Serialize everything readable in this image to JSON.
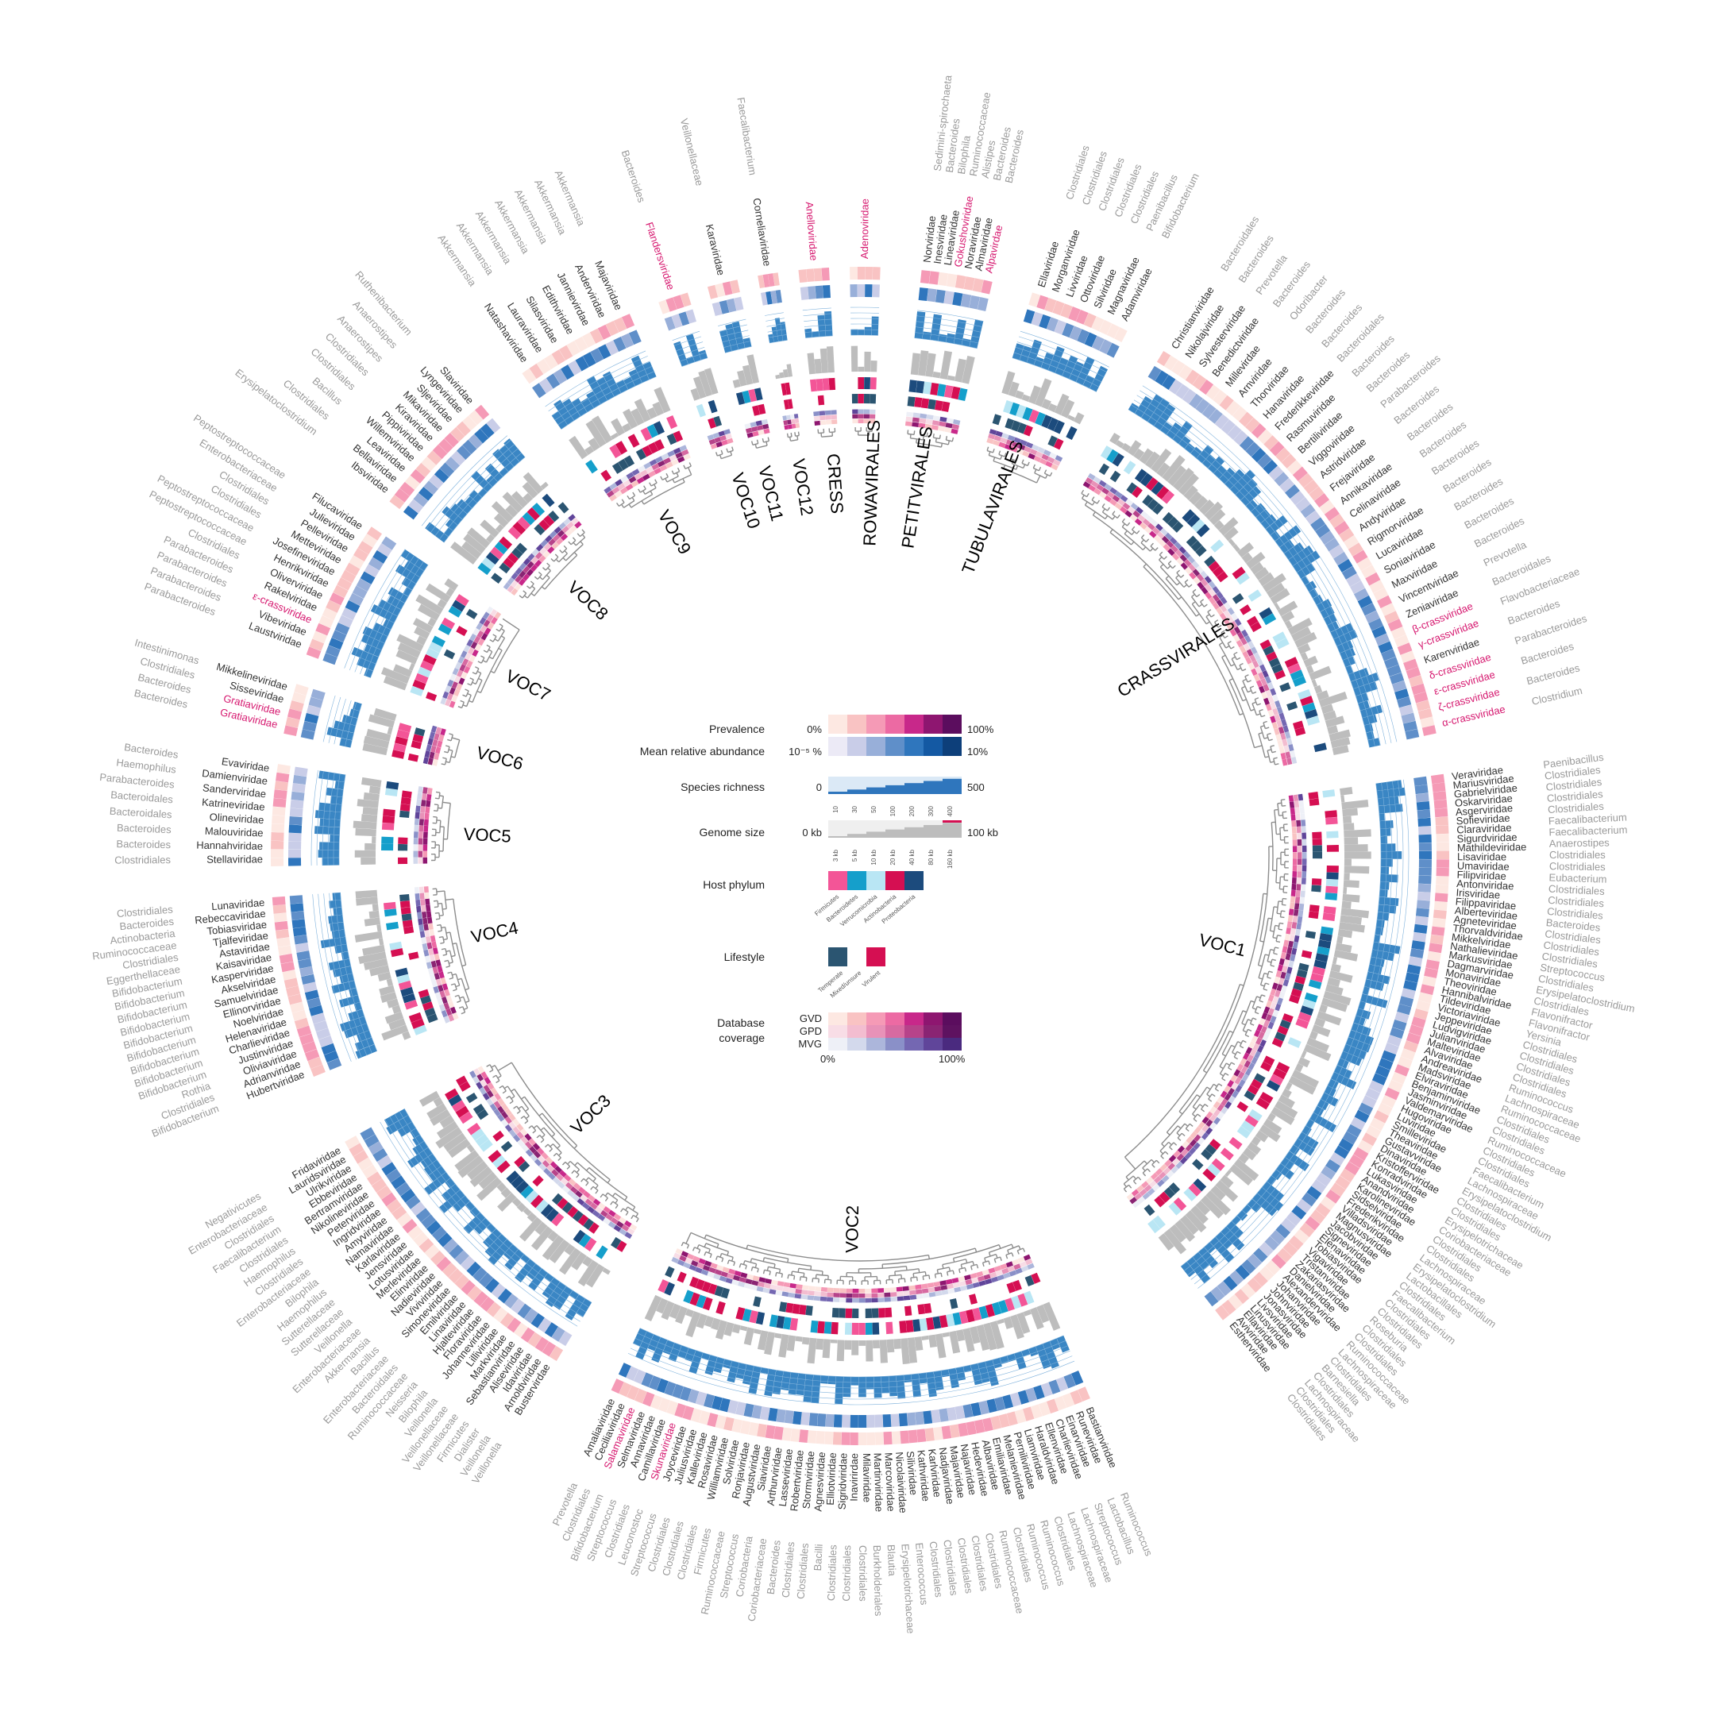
{
  "palette": {
    "prevalence": [
      "#fde8e2",
      "#f9c3c3",
      "#f59ab6",
      "#ec6aa3",
      "#c8288a",
      "#8e1670",
      "#5b0d5e"
    ],
    "abundance": [
      "#eceaf6",
      "#c9cde8",
      "#98afd9",
      "#5f8fc9",
      "#2f76bd",
      "#1459a3",
      "#0d3f7a"
    ],
    "host": [
      "#f35597",
      "#159fcb",
      "#b9e6f4",
      "#d50f52",
      "#1c4b7d"
    ],
    "lifestyle": [
      "#2b5571",
      "#d50f52"
    ],
    "coverage_gvd": [
      "#fde8e2",
      "#f9c3c3",
      "#f59ab6",
      "#ec6aa3",
      "#c8288a",
      "#8e1670",
      "#5b0d5e"
    ],
    "coverage_gpd": [
      "#f8dde6",
      "#f3bdd0",
      "#e892b8",
      "#d76aa1",
      "#b7438a",
      "#8a2473",
      "#5e1260"
    ],
    "coverage_mvg": [
      "#eef0f7",
      "#d3d9ec",
      "#acb6db",
      "#8a90c8",
      "#7467b2",
      "#60459a",
      "#4a2a7f"
    ],
    "genome": "#bdbdbd",
    "tree": "#8c8c8c",
    "pink_text": "#d6186f"
  },
  "legend": {
    "prevalence": {
      "label": "Prevalence",
      "min": "0%",
      "max": "100%"
    },
    "abundance": {
      "label": "Mean relative abundance",
      "min": "10⁻⁵ %",
      "max": "10%"
    },
    "richness": {
      "label": "Species richness",
      "min": "0",
      "max": "500",
      "ticks": [
        "10",
        "30",
        "50",
        "100",
        "200",
        "300",
        "400"
      ]
    },
    "genome": {
      "label": "Genome size",
      "min": "0 kb",
      "max": "100 kb",
      "ticks": [
        "3 kb",
        "5 kb",
        "10 kb",
        "20 kb",
        "40 kb",
        "80 kb",
        "160 kb"
      ]
    },
    "host": {
      "label": "Host phylum",
      "items": [
        "Firmicutes",
        "Bacteroidetes",
        "Verrucomicrobia",
        "Actinobacteria",
        "Proteobacteria"
      ]
    },
    "lifestyle": {
      "label": "Lifestyle",
      "items": [
        "Temperate",
        "Mixed/unsure",
        "Virulent"
      ]
    },
    "coverage": {
      "label1": "Database",
      "label2": "coverage",
      "rows": [
        "GVD",
        "GPD",
        "MVG"
      ],
      "min": "0%",
      "max": "100%"
    }
  },
  "clades": [
    {
      "name": "CRASSVIRALES",
      "lead_families": [
        "Christianviridae",
        "Nikolajviridae",
        "Sylvesterviridae",
        "Benedictviridae",
        "Millevirdae",
        "Arnviridae",
        "Thorviridae",
        "Hanaviridae",
        "Frederikkeviridae",
        "Rasmuviridae",
        "Bertiliviridae",
        "Viggoviridae",
        "Astridviridae",
        "Frejaviridae",
        "Annikaviridae",
        "Celinaviridae",
        "Andyviridae",
        "Rigmorviridae",
        "Lucaviridae",
        "Soniaviridae",
        "Maxviridae",
        "Vincentviridae",
        "Zeniaviridae",
        "β-crassviridae",
        "γ-crassviridae",
        "Karenviridae",
        "δ-crassviridae",
        "ε-crassviridae",
        "ζ-crassviridae",
        "α-crassviridae"
      ],
      "hosts": [
        "Bacteroidales",
        "Bacteroides",
        "Prevotella",
        "Bacteroides",
        "Odoribacter",
        "Bacteroides",
        "Bacteroides",
        "Bacteroidales",
        "Bacteroides",
        "Bacteroides",
        "Parabacteroides",
        "Bacteroides",
        "Bacteroides",
        "Bacteroides",
        "Bacteroides",
        "Bacteroides",
        "Bacteroides",
        "Bacteroides",
        "Bacteroides",
        "Prevotella",
        "Bacteroidales",
        "Flavobacteriaceae",
        "Bacteroides",
        "Parabacteroides",
        "Bacteroides",
        "Bacteroides",
        "Clostridium"
      ]
    },
    {
      "name": "VOC1",
      "lead_families": [
        "Veraviridae",
        "Mariusviridae",
        "Gabrielviridae",
        "Oskarviridae",
        "Asgerviridae",
        "Sofieviridae",
        "Claraviridae",
        "Sigurdviridae",
        "Mathildeviridae",
        "Lisaviridae",
        "Umaviridae",
        "Filipviridae",
        "Antonviridae",
        "Irisviridae",
        "Filippaviridae",
        "Alberteviridae",
        "Agneteviridae",
        "Thorvaldviridae",
        "Mikkelviridae",
        "Nathalieviridae",
        "Markusviridae",
        "Dagmarviridae",
        "Monaviridae",
        "Theoviridae",
        "Hannibalviridae",
        "Tildeviridae",
        "Victoriaviridae",
        "Jeppeviridae",
        "Ludvigviridae",
        "Julianviridae",
        "Malteviridae",
        "Alvaviridae",
        "Andreaviridae",
        "Madsviridae",
        "Elviraviridae",
        "Benjaminviridae",
        "Jasminviridae",
        "Valdemarviridae",
        "Hugoviridae",
        "Luviridae",
        "Smilleviridae",
        "Theaviridae",
        "Gustavviridae",
        "Dinaviridae",
        "Kristofferviridae",
        "Konradviridae",
        "Lukasviridae",
        "Anandviridae",
        "Karolineviridae",
        "Sidselviridae",
        "Frederikviridae",
        "Villadsviridae",
        "Magnusviridae",
        "Jacobviridae",
        "Signeviridae",
        "Elenaviridae",
        "Tobiasviridae",
        "Vigaviridae",
        "Tristanviridae",
        "Zakariasviridae",
        "Danielviridae",
        "Alexanderviridae",
        "Johanviridae",
        "Johnviridae",
        "Jonasviridae",
        "Livsviridae",
        "Linusviridae",
        "Ellaviridae",
        "Aviviridae",
        "Estherviridae"
      ],
      "hosts": [
        "Paenibacillus",
        "Clostridiales",
        "Clostridiales",
        "Clostridiales",
        "Clostridiales",
        "Faecalibacterium",
        "Faecalibacterium",
        "Anaerostipes",
        "Clostridiales",
        "Clostridiales",
        "Eubacterium",
        "Clostridiales",
        "Clostridiales",
        "Clostridiales",
        "Bacteroides",
        "Clostridiales",
        "Clostridiales",
        "Clostridiales",
        "Streptococcus",
        "Clostridiales",
        "Erysipelatoclostridium",
        "Clostridiales",
        "Flavonifractor",
        "Flavonifractor",
        "Yersinia",
        "Clostridiales",
        "Clostridiales",
        "Clostridiales",
        "Clostridiales",
        "Ruminococcus",
        "Lachnospiraceae",
        "Ruminococcaceae",
        "Clostridiales",
        "Clostridiales",
        "Ruminococcaceae",
        "Clostridiales",
        "Clostridiales",
        "Faecalibacterium",
        "Lachnospiraceae",
        "Erysipelatoclostridium",
        "Clostridiales",
        "Clostridiales",
        "Erysipelotrichaceae",
        "Coriobacteriaceae",
        "Clostridiales",
        "Clostridiales",
        "Lachnospiraceae",
        "Erysipelatoclostridium",
        "Lactobacillales",
        "Clostridiales",
        "Faecalibacterium",
        "Clostridiales",
        "Clostridiales",
        "Roseburia",
        "Clostridiales",
        "Clostridiales",
        "Ruminococcaceae",
        "Lachnospiraceae",
        "Clostridiales",
        "Barnesiella",
        "Clostridiales",
        "Lachnospiraceae",
        "Clostridiales",
        "Clostridiales"
      ]
    },
    {
      "name": "VOC2",
      "lead_families": [
        "Bastianviridae",
        "Runeviridae",
        "Einarviridae",
        "Charlieviridae",
        "Ellenviridae",
        "Haraldviridae",
        "Liamviridae",
        "Perniliviridae",
        "Melanieviridae",
        "Emiliaviridae",
        "Albaviridae",
        "Hedeviridae",
        "Najaviridae",
        "Majaviridae",
        "Nadjaviridae",
        "Karlviridae",
        "Kathviridae",
        "Siliviridae",
        "Nicolaiviridae",
        "Marcoviridae",
        "Martinviridae",
        "Milaviridae",
        "Inavirirdae",
        "Sigridviridae",
        "Elliotviridae",
        "Agnesviridae",
        "Stormviridae",
        "Robertviridae",
        "Lasseviridae",
        "Arthurviridae",
        "Siaviridae",
        "Augustviridae",
        "Ronjaviridae",
        "Solviridae",
        "Williamviridae",
        "Rosaviridae",
        "Kalleviridae",
        "Juliusviridae",
        "Joyceviridae",
        "Skunaviridae",
        "Camillaviridae",
        "Annaviridae",
        "Selmaviridae",
        "Salamaviridae",
        "Ceciliaviridae",
        "Amaliaviridae"
      ],
      "hosts": [
        "Ruminococcus",
        "Lactobacillus",
        "Streptococcus",
        "Lachnospiraceae",
        "Lachnospiraceae",
        "Clostridiales",
        "Ruminococcus",
        "Ruminococcus",
        "Clostridiales",
        "Ruminococcaceae",
        "Clostridiales",
        "Clostridiales",
        "Clostridiales",
        "Clostridiales",
        "Clostridiales",
        "Enterococcus",
        "Erysipelotrichaceae",
        "Blautia",
        "Burkholderiales",
        "Clostridiales",
        "Clostridiales",
        "Clostridiales",
        "Bacilli",
        "Clostridiales",
        "Clostridiales",
        "Bacteroides",
        "Coriobacteriaceae",
        "Coriobacteria",
        "Streptococcus",
        "Ruminococcaceae",
        "Firmicutes",
        "Clostridiales",
        "Clostridiales",
        "Clostridiales",
        "Streptococcus",
        "Leuconostoc",
        "Clostridiales",
        "Streptococcus",
        "Bifidobacterium",
        "Clostridiales",
        "Prevotella"
      ]
    },
    {
      "name": "VOC3",
      "lead_families": [
        "Bustervirdae",
        "Arnoldviridae",
        "Idaviridae",
        "Aliseviridae",
        "Sebastianviridae",
        "Markviridae",
        "Lilliviridae",
        "Johanneviridae",
        "Floraviridae",
        "Hjalteviridae",
        "Linaviridae",
        "Emilviridae",
        "Simoneviridae",
        "Viviviridae",
        "Nadieviridae",
        "Elinviridae",
        "Merleviridae",
        "Lotusviridae",
        "Jensviridae",
        "Karlaviridae",
        "Namaviridae",
        "Amyviridae",
        "Ingridviridae",
        "Peterviridae",
        "Nikolineviridae",
        "Bertramviridae",
        "Ebbeviridae",
        "Ulrikviridae",
        "Lauridsviridae",
        "Fridaviridae"
      ],
      "hosts": [
        "Veillonella",
        "Veillonella",
        "Dialister",
        "Firmicutes",
        "Veillonellaceae",
        "Veillonellaceae",
        "Veillonella",
        "Bilophila",
        "Neisseria",
        "Ruminococcaceae",
        "Bacteroidales",
        "Enterobacteriaceae",
        "Bacillus",
        "Akkermansia",
        "Enterobacteriaceae",
        "Veillonella",
        "Sutterellaceae",
        "Sutterellaceae",
        "Haemophilus",
        "Bilophila",
        "Enterobacteriaceae",
        "Clostridiales",
        "Haemophilus",
        "Clostridiales",
        "Faecalibacterium",
        "Clostridiales",
        "Enterobacteriaceae",
        "Negativicutes"
      ]
    },
    {
      "name": "VOC4",
      "lead_families": [
        "Hubertviridae",
        "Adrianviridae",
        "Oliviaviridae",
        "Justinviridae",
        "Charlieviridae",
        "Helenaviridae",
        "Noelviridae",
        "Ellinorviridae",
        "Samuelviridae",
        "Akselviridae",
        "Kasperviridae",
        "Kaisaviridae",
        "Astaviridae",
        "Tjalfeviridae",
        "Tobiasviridae",
        "Rebeccaviridae",
        "Lunaviridae"
      ],
      "hosts": [
        "Bifidobacterium",
        "Clostridiales",
        "Rothia",
        "Bifidobacterium",
        "Bifidobacterium",
        "Bifidobacterium",
        "Bifidobacterium",
        "Bifidobacterium",
        "Bifidobacterium",
        "Bifidobacterium",
        "Bifidobacterium",
        "Bifidobacterium",
        "Eggerthellaceae",
        "Clostridiales",
        "Ruminococcaceae",
        "Actinobacteria",
        "Bacteroides",
        "Clostridiales"
      ]
    },
    {
      "name": "VOC5",
      "lead_families": [
        "Stellaviridae",
        "Hannahviridae",
        "Malouviridae",
        "Olineviridae",
        "Katrineviridae",
        "Sanderviridae",
        "Damienviridae",
        "Evaviridae"
      ],
      "hosts": [
        "Clostridiales",
        "Bacteroides",
        "Bacteroides",
        "Bacteroidales",
        "Bacteroidales",
        "Parabacteroides",
        "Haemophilus",
        "Bacteroides"
      ]
    },
    {
      "name": "VOC6",
      "lead_families": [
        "Gratiaviridae",
        "Gratiaviridae",
        "Sisseviridae",
        "Mikkelineviridae"
      ],
      "hosts": [
        "Bacteroides",
        "Bacteroides",
        "Clostridiales",
        "Intestinimonas"
      ]
    },
    {
      "name": "VOC7",
      "lead_families": [
        "Laustviridae",
        "Vibeviridae",
        "ε-crassviridae",
        "Rakelviridae",
        "Oliverviridae",
        "Henrikviridae",
        "Josefineviridae",
        "Metteviridae",
        "Pelleviridae",
        "Julieviridae",
        "Filucaviridae"
      ],
      "hosts": [
        "Parabacteroides",
        "Parabacteroides",
        "Parabacteroides",
        "Parabacteroides",
        "Clostridiales",
        "Peptostreptococcaceae",
        "Peptostreptococcaceae",
        "Clostridiales",
        "Clostridiales",
        "Enterobacteriaceae",
        "Peptostreptococcaceae"
      ]
    },
    {
      "name": "VOC8",
      "lead_families": [
        "Ibsviridae",
        "Bellaviridae",
        "Leaviridae",
        "Willemviridae",
        "Pippiviridae",
        "Kiraviridae",
        "Mikaviridae",
        "Sljeviridae",
        "Lyngeviridae",
        "Slaviridae"
      ],
      "hosts": [
        "Erysipelatoclostridium",
        "Clostridiales",
        "Bacillus",
        "Clostridiales",
        "Clostridiales",
        "Anaerostipes",
        "Anaerostipes",
        "Ruthenibacterium"
      ]
    },
    {
      "name": "VOC9",
      "lead_families": [
        "Natashaviridae",
        "Lauraviridae",
        "Silasviridae",
        "Edithviridae",
        "Jannievirdae",
        "Anderviridae",
        "Majaviridae"
      ],
      "hosts": [
        "Akkermansia",
        "Akkermansia",
        "Akkermansia",
        "Akkermansia",
        "Akkermansia",
        "Akkermansia",
        "Akkermansia"
      ]
    },
    {
      "name": "VOC10",
      "lead_families": [
        "Flandersviridae"
      ],
      "hosts": [
        "Bacteroides"
      ]
    },
    {
      "name": "VOC11",
      "lead_families": [
        "Karaviridae"
      ],
      "hosts": [
        "Veillonellaceae"
      ]
    },
    {
      "name": "VOC12",
      "lead_families": [
        "Corneliaviridae"
      ],
      "hosts": [
        "Faecalibacterium"
      ]
    },
    {
      "name": "CRESS",
      "lead_families": [
        "Anelloviridae"
      ],
      "hosts": []
    },
    {
      "name": "ROWAVIRALES",
      "lead_families": [
        "Adenoviridae"
      ],
      "hosts": []
    },
    {
      "name": "PETITVIRALES",
      "lead_families": [
        "Norviridae",
        "Inesviridae",
        "Lineaviridae",
        "Gokushoviridae",
        "Noraviridae",
        "Almaviridae",
        "Alpavirdae"
      ],
      "hosts": [
        "Sedimini-spirochaeta",
        "Bacteroides",
        "Bilophila",
        "Ruminococcaceae",
        "Alistipes",
        "Bacteroides",
        "Bacteroides"
      ]
    },
    {
      "name": "TUBULAVIRALES",
      "lead_families": [
        "Ellaviridae",
        "Morganviridae",
        "Livviridae",
        "Ottoviridae",
        "Silviridae",
        "Magnaviridae",
        "Adamviridae"
      ],
      "hosts": [
        "Clostridiales",
        "Clostridiales",
        "Clostridiales",
        "Clostridiales",
        "Clostridiales",
        "Paenibacillus",
        "Bifidobacterium"
      ]
    }
  ]
}
